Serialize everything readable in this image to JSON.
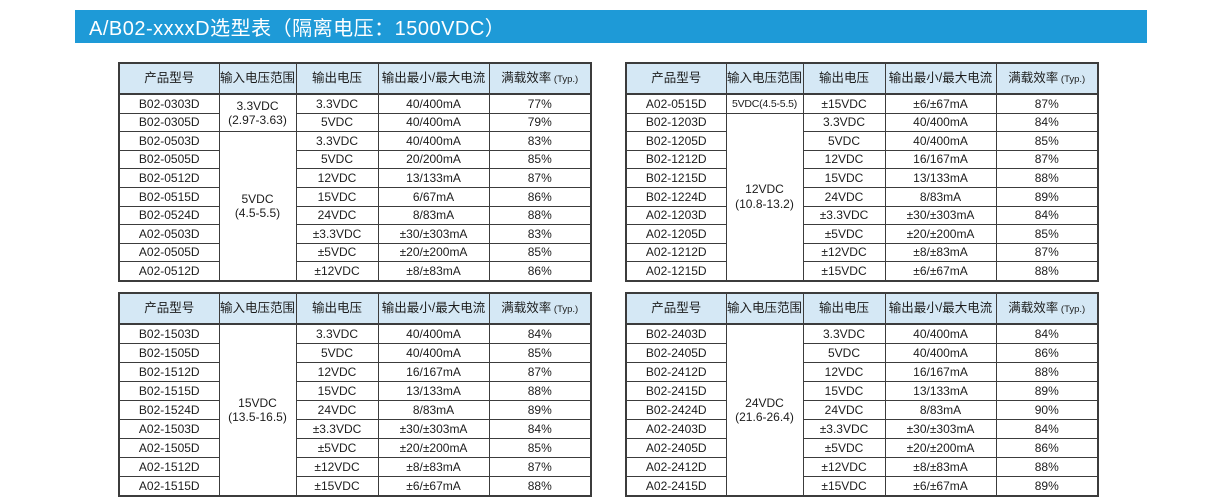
{
  "banner": {
    "title": "A/B02-xxxxD选型表（隔离电压：1500VDC）",
    "bg_color": "#1e9ad7",
    "text_color": "#ffffff"
  },
  "table_header": {
    "model": "产品型号",
    "input_range": "输入电压范围",
    "output_voltage": "输出电压",
    "output_current": "输出最小/最大电流",
    "efficiency": "满载效率",
    "efficiency_suffix": "(Typ.)"
  },
  "style": {
    "header_row_bg": "#d5e8f5",
    "border_color": "#3c3c3c"
  },
  "tables": [
    {
      "position": "top-left",
      "groups": [
        {
          "input_voltage": "3.3VDC",
          "input_range": "(2.97-3.63)",
          "rows": [
            {
              "model": "B02-0303D",
              "output_voltage": "3.3VDC",
              "output_current": "40/400mA",
              "efficiency": "77%"
            },
            {
              "model": "B02-0305D",
              "output_voltage": "5VDC",
              "output_current": "40/400mA",
              "efficiency": "79%"
            }
          ]
        },
        {
          "input_voltage": "5VDC",
          "input_range": "(4.5-5.5)",
          "rows": [
            {
              "model": "B02-0503D",
              "output_voltage": "3.3VDC",
              "output_current": "40/400mA",
              "efficiency": "83%"
            },
            {
              "model": "B02-0505D",
              "output_voltage": "5VDC",
              "output_current": "20/200mA",
              "efficiency": "85%"
            },
            {
              "model": "B02-0512D",
              "output_voltage": "12VDC",
              "output_current": "13/133mA",
              "efficiency": "87%"
            },
            {
              "model": "B02-0515D",
              "output_voltage": "15VDC",
              "output_current": "6/67mA",
              "efficiency": "86%"
            },
            {
              "model": "B02-0524D",
              "output_voltage": "24VDC",
              "output_current": "8/83mA",
              "efficiency": "88%"
            },
            {
              "model": "A02-0503D",
              "output_voltage": "±3.3VDC",
              "output_current": "±30/±303mA",
              "efficiency": "83%"
            },
            {
              "model": "A02-0505D",
              "output_voltage": "±5VDC",
              "output_current": "±20/±200mA",
              "efficiency": "85%"
            },
            {
              "model": "A02-0512D",
              "output_voltage": "±12VDC",
              "output_current": "±8/±83mA",
              "efficiency": "86%"
            }
          ]
        }
      ]
    },
    {
      "position": "top-right",
      "groups": [
        {
          "input_voltage": "5VDC(4.5-5.5)",
          "input_range": "",
          "rows": [
            {
              "model": "A02-0515D",
              "output_voltage": "±15VDC",
              "output_current": "±6/±67mA",
              "efficiency": "87%"
            }
          ]
        },
        {
          "input_voltage": "12VDC",
          "input_range": "(10.8-13.2)",
          "rows": [
            {
              "model": "B02-1203D",
              "output_voltage": "3.3VDC",
              "output_current": "40/400mA",
              "efficiency": "84%"
            },
            {
              "model": "B02-1205D",
              "output_voltage": "5VDC",
              "output_current": "40/400mA",
              "efficiency": "85%"
            },
            {
              "model": "B02-1212D",
              "output_voltage": "12VDC",
              "output_current": "16/167mA",
              "efficiency": "87%"
            },
            {
              "model": "B02-1215D",
              "output_voltage": "15VDC",
              "output_current": "13/133mA",
              "efficiency": "88%"
            },
            {
              "model": "B02-1224D",
              "output_voltage": "24VDC",
              "output_current": "8/83mA",
              "efficiency": "89%"
            },
            {
              "model": "A02-1203D",
              "output_voltage": "±3.3VDC",
              "output_current": "±30/±303mA",
              "efficiency": "84%"
            },
            {
              "model": "A02-1205D",
              "output_voltage": "±5VDC",
              "output_current": "±20/±200mA",
              "efficiency": "85%"
            },
            {
              "model": "A02-1212D",
              "output_voltage": "±12VDC",
              "output_current": "±8/±83mA",
              "efficiency": "87%"
            },
            {
              "model": "A02-1215D",
              "output_voltage": "±15VDC",
              "output_current": "±6/±67mA",
              "efficiency": "88%"
            }
          ]
        }
      ]
    },
    {
      "position": "bottom-left",
      "groups": [
        {
          "input_voltage": "15VDC",
          "input_range": "(13.5-16.5)",
          "rows": [
            {
              "model": "B02-1503D",
              "output_voltage": "3.3VDC",
              "output_current": "40/400mA",
              "efficiency": "84%"
            },
            {
              "model": "B02-1505D",
              "output_voltage": "5VDC",
              "output_current": "40/400mA",
              "efficiency": "85%"
            },
            {
              "model": "B02-1512D",
              "output_voltage": "12VDC",
              "output_current": "16/167mA",
              "efficiency": "87%"
            },
            {
              "model": "B02-1515D",
              "output_voltage": "15VDC",
              "output_current": "13/133mA",
              "efficiency": "88%"
            },
            {
              "model": "B02-1524D",
              "output_voltage": "24VDC",
              "output_current": "8/83mA",
              "efficiency": "89%"
            },
            {
              "model": "A02-1503D",
              "output_voltage": "±3.3VDC",
              "output_current": "±30/±303mA",
              "efficiency": "84%"
            },
            {
              "model": "A02-1505D",
              "output_voltage": "±5VDC",
              "output_current": "±20/±200mA",
              "efficiency": "85%"
            },
            {
              "model": "A02-1512D",
              "output_voltage": "±12VDC",
              "output_current": "±8/±83mA",
              "efficiency": "87%"
            },
            {
              "model": "A02-1515D",
              "output_voltage": "±15VDC",
              "output_current": "±6/±67mA",
              "efficiency": "88%"
            }
          ]
        }
      ]
    },
    {
      "position": "bottom-right",
      "groups": [
        {
          "input_voltage": "24VDC",
          "input_range": "(21.6-26.4)",
          "rows": [
            {
              "model": "B02-2403D",
              "output_voltage": "3.3VDC",
              "output_current": "40/400mA",
              "efficiency": "84%"
            },
            {
              "model": "B02-2405D",
              "output_voltage": "5VDC",
              "output_current": "40/400mA",
              "efficiency": "86%"
            },
            {
              "model": "B02-2412D",
              "output_voltage": "12VDC",
              "output_current": "16/167mA",
              "efficiency": "88%"
            },
            {
              "model": "B02-2415D",
              "output_voltage": "15VDC",
              "output_current": "13/133mA",
              "efficiency": "89%"
            },
            {
              "model": "B02-2424D",
              "output_voltage": "24VDC",
              "output_current": "8/83mA",
              "efficiency": "90%"
            },
            {
              "model": "A02-2403D",
              "output_voltage": "±3.3VDC",
              "output_current": "±30/±303mA",
              "efficiency": "84%"
            },
            {
              "model": "A02-2405D",
              "output_voltage": "±5VDC",
              "output_current": "±20/±200mA",
              "efficiency": "86%"
            },
            {
              "model": "A02-2412D",
              "output_voltage": "±12VDC",
              "output_current": "±8/±83mA",
              "efficiency": "88%"
            },
            {
              "model": "A02-2415D",
              "output_voltage": "±15VDC",
              "output_current": "±6/±67mA",
              "efficiency": "89%"
            }
          ]
        }
      ]
    }
  ]
}
